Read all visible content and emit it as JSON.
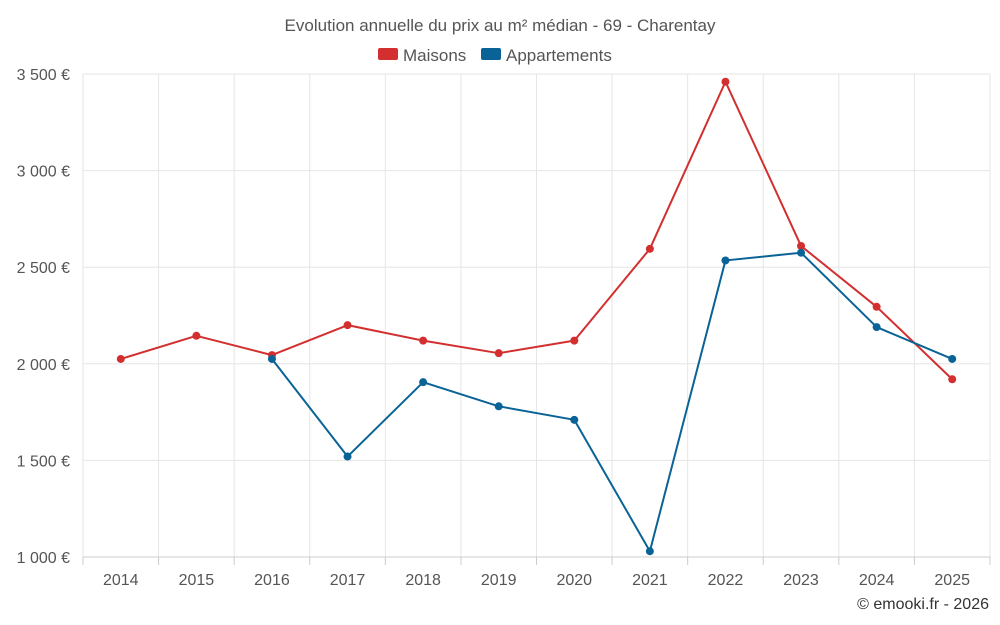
{
  "chart_data": {
    "type": "line",
    "title": "Evolution annuelle du prix au m² médian - 69 - Charentay",
    "categories": [
      "2014",
      "2015",
      "2016",
      "2017",
      "2018",
      "2019",
      "2020",
      "2021",
      "2022",
      "2023",
      "2024",
      "2025"
    ],
    "series": [
      {
        "name": "Maisons",
        "color": "#d32f2f",
        "values": [
          2025,
          2145,
          2045,
          2200,
          2120,
          2055,
          2120,
          2595,
          3460,
          2610,
          2295,
          1920
        ]
      },
      {
        "name": "Appartements",
        "color": "#0a6396",
        "values": [
          null,
          null,
          2025,
          1520,
          1905,
          1780,
          1710,
          1030,
          2535,
          2575,
          2190,
          2025
        ]
      }
    ],
    "ylim": [
      1000,
      3500
    ],
    "yticks": [
      1000,
      1500,
      2000,
      2500,
      3000,
      3500
    ],
    "ytick_labels": [
      "1 000 €",
      "1 500 €",
      "2 000 €",
      "2 500 €",
      "3 000 €",
      "3 500 €"
    ],
    "legend_position": "top-center",
    "credit": "© emooki.fr - 2026"
  }
}
